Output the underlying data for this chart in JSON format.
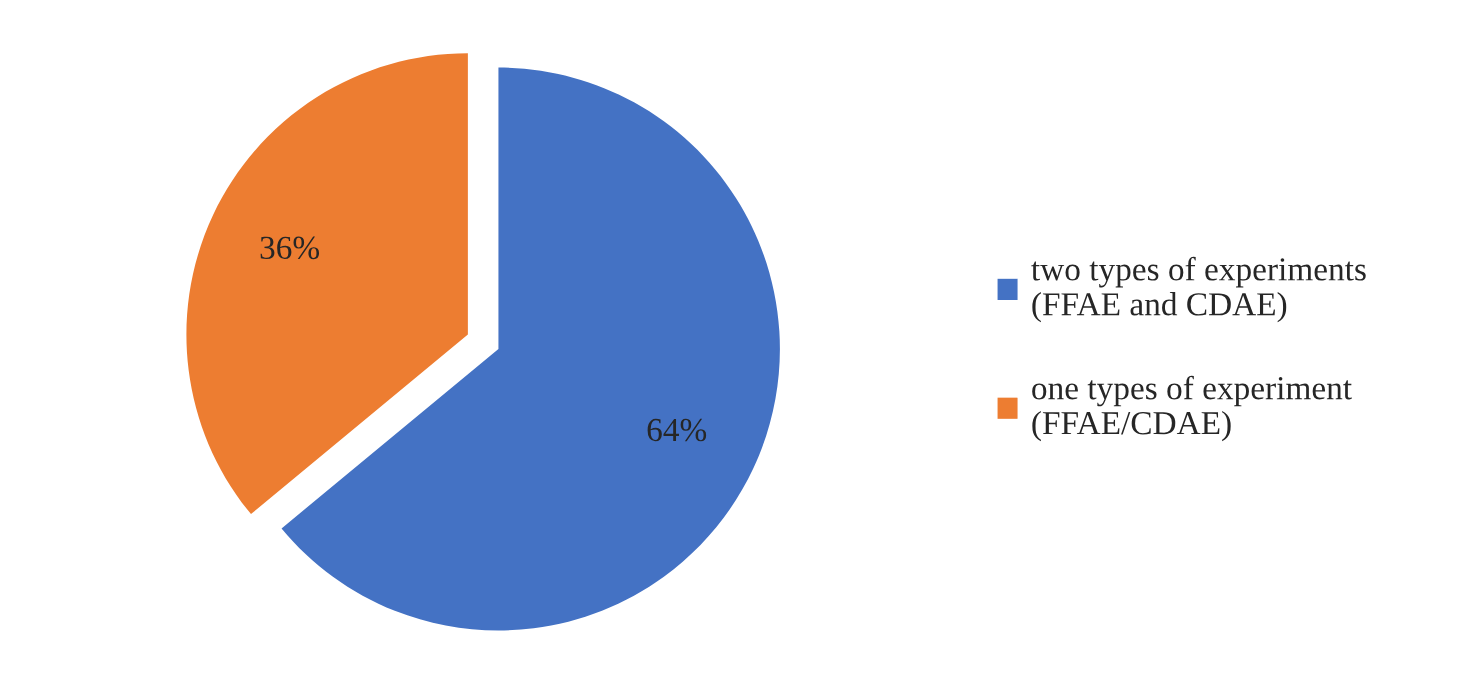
{
  "chart_data": {
    "type": "pie",
    "categories": [
      "two types of experiments (FFAE and CDAE)",
      "one types of experiment (FFAE/CDAE)"
    ],
    "values": [
      64,
      36
    ],
    "colors": [
      "#4472c4",
      "#ed7d31"
    ],
    "value_labels": [
      "64%",
      "36%"
    ],
    "legend": "right"
  }
}
